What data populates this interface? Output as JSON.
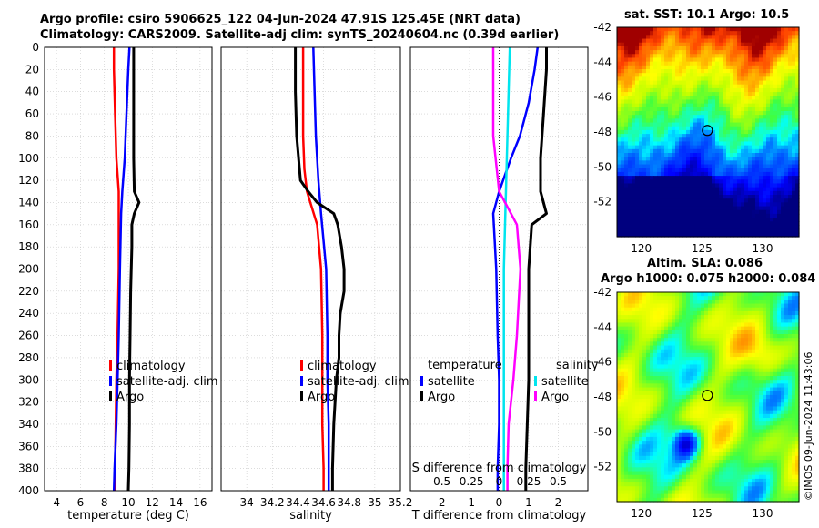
{
  "header": {
    "line1": "Argo profile: csiro 5906625_122 04-Jun-2024 47.91S 125.45E (NRT data)",
    "line2": "Climatology: CARS2009. Satellite-adj clim: synTS_20240604.nc (0.39d earlier)"
  },
  "sst_map": {
    "title": "sat. SST: 10.1 Argo: 10.5",
    "lat_ticks": [
      "-42",
      "-44",
      "-46",
      "-48",
      "-50",
      "-52"
    ],
    "lon_ticks": [
      "120",
      "125",
      "130"
    ],
    "float_lat": -47.91,
    "float_lon": 125.45
  },
  "sla_map": {
    "title1": "Altim. SLA: 0.086",
    "title2": "Argo h1000: 0.075 h2000: 0.084",
    "lat_ticks": [
      "-42",
      "-44",
      "-46",
      "-48",
      "-50",
      "-52"
    ],
    "lon_ticks": [
      "120",
      "125",
      "130"
    ],
    "float_lat": -47.91,
    "float_lon": 125.45
  },
  "stamp": "©IMOS 09-Jun-2024 11:43:06",
  "colors": {
    "climatology": "#ff0000",
    "satellite": "#0000ff",
    "argo": "#000000",
    "cyan": "#00e5ee",
    "magenta": "#ff00ff"
  },
  "chart_data": [
    {
      "type": "line",
      "name": "temperature-profile",
      "xlabel": "temperature (deg C)",
      "ylabel": "",
      "xlim": [
        3,
        17
      ],
      "ylim": [
        400,
        0
      ],
      "x_ticks": [
        "4",
        "6",
        "8",
        "10",
        "12",
        "14",
        "16"
      ],
      "y_ticks": [
        "0",
        "20",
        "40",
        "60",
        "80",
        "100",
        "120",
        "140",
        "160",
        "180",
        "200",
        "220",
        "240",
        "260",
        "280",
        "300",
        "320",
        "340",
        "360",
        "380",
        "400"
      ],
      "legend": [
        "climatology",
        "satellite-adj. clim",
        "Argo"
      ],
      "series": [
        {
          "name": "climatology",
          "depth": [
            0,
            20,
            60,
            100,
            130,
            160,
            200,
            260,
            300,
            340,
            380,
            400
          ],
          "values": [
            8.8,
            8.8,
            8.9,
            9.0,
            9.2,
            9.2,
            9.2,
            9.1,
            9.0,
            8.95,
            8.9,
            8.85
          ]
        },
        {
          "name": "satellite-adj. clim",
          "depth": [
            0,
            20,
            60,
            100,
            130,
            150,
            200,
            260,
            300,
            340,
            380,
            400
          ],
          "values": [
            10.1,
            10.0,
            9.85,
            9.7,
            9.5,
            9.4,
            9.3,
            9.2,
            9.1,
            9.0,
            8.85,
            8.8
          ]
        },
        {
          "name": "Argo",
          "depth": [
            0,
            20,
            60,
            100,
            130,
            140,
            150,
            160,
            180,
            220,
            260,
            300,
            340,
            380,
            400
          ],
          "values": [
            10.45,
            10.45,
            10.45,
            10.45,
            10.5,
            10.9,
            10.5,
            10.3,
            10.3,
            10.2,
            10.15,
            10.1,
            10.1,
            10.05,
            10.0
          ]
        }
      ]
    },
    {
      "type": "line",
      "name": "salinity-profile",
      "xlabel": "salinity",
      "xlim": [
        33.8,
        35.2
      ],
      "ylim": [
        400,
        0
      ],
      "x_ticks": [
        "34",
        "34.2",
        "34.4",
        "34.6",
        "34.8",
        "35",
        "35.2"
      ],
      "legend": [
        "climatology",
        "satellite-adj. clim",
        "Argo"
      ],
      "series": [
        {
          "name": "climatology",
          "depth": [
            0,
            40,
            80,
            110,
            130,
            160,
            200,
            260,
            300,
            340,
            380,
            400
          ],
          "values": [
            34.44,
            34.44,
            34.44,
            34.45,
            34.47,
            34.55,
            34.58,
            34.59,
            34.59,
            34.59,
            34.6,
            34.6
          ]
        },
        {
          "name": "satellite-adj. clim",
          "depth": [
            0,
            40,
            80,
            120,
            150,
            200,
            260,
            300,
            340,
            380,
            400
          ],
          "values": [
            34.52,
            34.53,
            34.54,
            34.56,
            34.58,
            34.62,
            34.63,
            34.63,
            34.64,
            34.64,
            34.64
          ]
        },
        {
          "name": "Argo",
          "depth": [
            0,
            40,
            80,
            120,
            130,
            140,
            150,
            160,
            180,
            200,
            220,
            240,
            260,
            280,
            300,
            340,
            380,
            400
          ],
          "values": [
            34.38,
            34.38,
            34.39,
            34.42,
            34.48,
            34.55,
            34.68,
            34.71,
            34.74,
            34.76,
            34.76,
            34.73,
            34.72,
            34.72,
            34.7,
            34.68,
            34.67,
            34.67
          ]
        }
      ]
    },
    {
      "type": "line",
      "name": "difference-profile",
      "xlabel": "T difference from climatology",
      "xlabel_top": "S difference from climatology",
      "xlim": [
        -3,
        3
      ],
      "ylim": [
        400,
        0
      ],
      "x_ticks": [
        "-2",
        "-1",
        "0",
        "1",
        "2"
      ],
      "x_ticks_top": [
        "-0.5",
        "-0.25",
        "0",
        "0.25",
        "0.5"
      ],
      "legend_temperature_title": "temperature",
      "legend_salinity_title": "salinity",
      "legend_temperature": [
        "satellite",
        "Argo"
      ],
      "legend_salinity": [
        "satellite",
        "Argo"
      ],
      "series": [
        {
          "name": "temperature satellite",
          "axis": "T",
          "depth": [
            0,
            20,
            50,
            80,
            100,
            130,
            150,
            200,
            260,
            300,
            340,
            380,
            400
          ],
          "values": [
            1.3,
            1.2,
            1.0,
            0.7,
            0.4,
            0.0,
            -0.2,
            -0.1,
            -0.05,
            0.0,
            0.0,
            -0.05,
            -0.05
          ]
        },
        {
          "name": "temperature Argo",
          "axis": "T",
          "depth": [
            0,
            20,
            60,
            100,
            130,
            150,
            160,
            200,
            260,
            300,
            340,
            380,
            400
          ],
          "values": [
            1.6,
            1.6,
            1.5,
            1.4,
            1.4,
            1.6,
            1.1,
            1.0,
            1.0,
            1.0,
            0.95,
            0.9,
            0.9
          ]
        },
        {
          "name": "salinity satellite",
          "axis": "S",
          "depth": [
            0,
            40,
            80,
            120,
            160,
            200,
            260,
            300,
            340,
            380,
            400
          ],
          "values": [
            0.09,
            0.08,
            0.07,
            0.06,
            0.05,
            0.04,
            0.04,
            0.04,
            0.04,
            0.04,
            0.04
          ]
        },
        {
          "name": "salinity Argo",
          "axis": "S",
          "depth": [
            0,
            40,
            80,
            100,
            120,
            130,
            140,
            160,
            200,
            260,
            300,
            340,
            380,
            400
          ],
          "values": [
            -0.05,
            -0.05,
            -0.05,
            -0.03,
            -0.01,
            0.0,
            0.05,
            0.15,
            0.18,
            0.15,
            0.12,
            0.08,
            0.07,
            0.07
          ]
        }
      ]
    }
  ]
}
